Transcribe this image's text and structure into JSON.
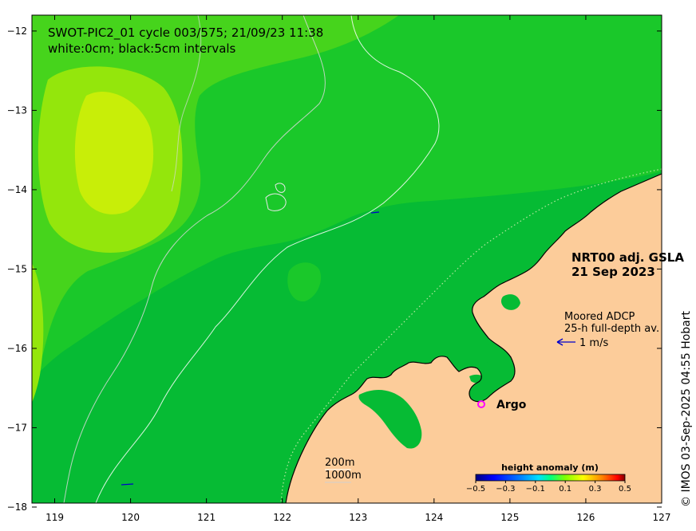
{
  "title": {
    "line1": "SWOT-PIC2_01 cycle 003/575; 21/09/23 11:38",
    "line2": "white:0cm; black:5cm intervals"
  },
  "product": {
    "line1": "NRT00 adj. GSLA",
    "line2": "21 Sep 2023"
  },
  "adcp": {
    "line1": "Moored ADCP",
    "line2": "25-h full-depth av.",
    "scale_label": "1 m/s",
    "arrow_color": "#0000cc"
  },
  "argo": {
    "label": "Argo",
    "marker": "circle",
    "color": "#ff00ff"
  },
  "isobaths": {
    "shallow": "200m",
    "deep": "1000m"
  },
  "credit": "© IMOS 03-Sep-2025 04:55 Hobart",
  "colorbar": {
    "title": "height anomaly (m)",
    "ticks": [
      "−0.5",
      "−0.3",
      "−0.1",
      "0.1",
      "0.3",
      "0.5"
    ],
    "range": [
      -0.5,
      0.5
    ],
    "colors": [
      "#00007f",
      "#0000ff",
      "#0080ff",
      "#00ffff",
      "#00ff80",
      "#80ff00",
      "#ffff00",
      "#ff8000",
      "#ff0000",
      "#7f0000"
    ]
  },
  "axes": {
    "lon_ticks": [
      "119",
      "120",
      "121",
      "122",
      "123",
      "124",
      "125",
      "126",
      "127"
    ],
    "lat_ticks": [
      "−12",
      "−13",
      "−14",
      "−15",
      "−16",
      "−17",
      "−18"
    ],
    "lon_range": [
      118.7,
      127.0
    ],
    "lat_range": [
      -17.95,
      -11.8
    ]
  },
  "colors": {
    "land": "#fccc9a",
    "sea_base": "#06bb34",
    "sea_mid": "#1ac82a",
    "sea_high": "#46d41c",
    "anomaly_peak": "#c8ee08"
  }
}
